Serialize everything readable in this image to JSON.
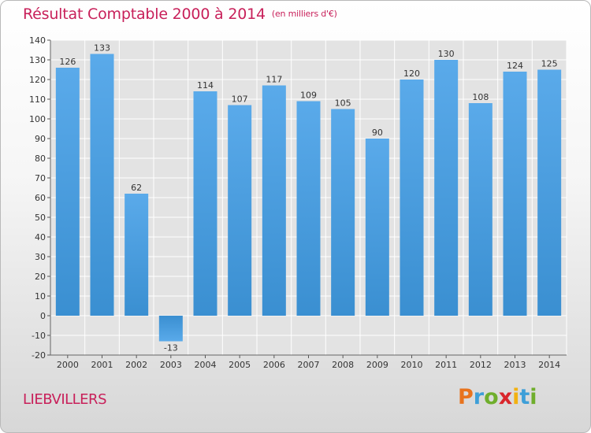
{
  "title": "Résultat Comptable 2000 à 2014",
  "unit": "(en milliers d'€)",
  "commune": "LIEBVILLERS",
  "logo": {
    "letters": [
      "P",
      "r",
      "o",
      "x",
      "i",
      "t",
      "i"
    ],
    "colors": [
      "#e8731d",
      "#3e9fd8",
      "#6fae2c",
      "#d9262c",
      "#f2b111",
      "#3e9fd8",
      "#6fae2c"
    ]
  },
  "colors": {
    "title": "#c8205a",
    "bar": "#3a8fd1",
    "bar_light": "#5aaaea",
    "grid": "#ffffff"
  },
  "chart_data": {
    "type": "bar",
    "title": "Résultat Comptable 2000 à 2014",
    "xlabel": "",
    "ylabel": "(en milliers d'€)",
    "categories": [
      "2000",
      "2001",
      "2002",
      "2003",
      "2004",
      "2005",
      "2006",
      "2007",
      "2008",
      "2009",
      "2010",
      "2011",
      "2012",
      "2013",
      "2014"
    ],
    "values": [
      126,
      133,
      62,
      -13,
      114,
      107,
      117,
      109,
      105,
      90,
      120,
      130,
      108,
      124,
      125
    ],
    "ylim": [
      -20,
      140
    ],
    "yticks": [
      -20,
      -10,
      0,
      10,
      20,
      30,
      40,
      50,
      60,
      70,
      80,
      90,
      100,
      110,
      120,
      130,
      140
    ],
    "grid": true
  }
}
